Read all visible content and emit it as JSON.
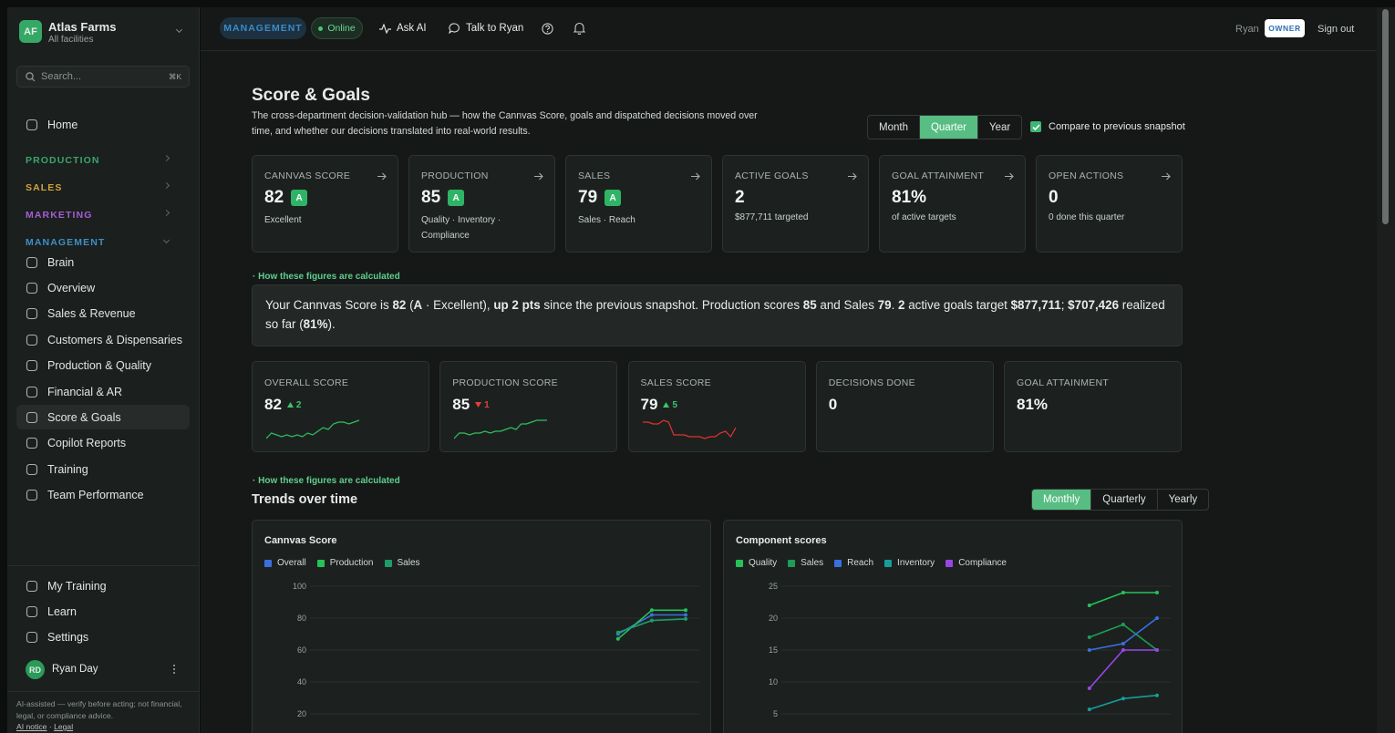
{
  "sidebar": {
    "org": {
      "initials": "AF",
      "name": "Atlas Farms",
      "subtitle": "All facilities"
    },
    "search": {
      "placeholder": "Search...",
      "shortcut": "⌘K"
    },
    "home": "Home",
    "sections": [
      {
        "label": "PRODUCTION",
        "color": "#3aa56c"
      },
      {
        "label": "SALES",
        "color": "#d2a23c"
      },
      {
        "label": "MARKETING",
        "color": "#a45fd6"
      },
      {
        "label": "MANAGEMENT",
        "color": "#3d8fc6",
        "expanded": true,
        "items": [
          {
            "label": "Brain"
          },
          {
            "label": "Overview"
          },
          {
            "label": "Sales & Revenue"
          },
          {
            "label": "Customers & Dispensaries"
          },
          {
            "label": "Production & Quality"
          },
          {
            "label": "Financial & AR"
          },
          {
            "label": "Score & Goals",
            "active": true
          },
          {
            "label": "Copilot Reports"
          },
          {
            "label": "Training"
          },
          {
            "label": "Team Performance"
          }
        ]
      }
    ],
    "footer_items": [
      "My Training",
      "Learn",
      "Settings"
    ],
    "user": {
      "initials": "RD",
      "name": "Ryan Day"
    },
    "disclaimer": "AI-assisted — verify before acting; not financial, legal, or compliance advice.",
    "links": [
      "AI notice",
      "Legal"
    ]
  },
  "topbar": {
    "context": "MANAGEMENT",
    "status": "Online",
    "actions": [
      "Ask AI",
      "Talk to Ryan"
    ],
    "user": "Ryan",
    "role": "OWNER",
    "sign_out": "Sign out"
  },
  "header": {
    "title": "Score & Goals",
    "description": "The cross-department decision-validation hub — how the Cannvas Score, goals and dispatched decisions moved over time, and whether our decisions translated into real-world results.",
    "periods": [
      {
        "label": "Month"
      },
      {
        "label": "Quarter",
        "selected": true
      },
      {
        "label": "Year"
      }
    ],
    "compare": {
      "label": "Compare to previous snapshot",
      "checked": true
    }
  },
  "kpis": [
    {
      "label": "CANNVAS SCORE",
      "value": 82,
      "grade": "A",
      "sub": "Excellent"
    },
    {
      "label": "PRODUCTION",
      "value": 85,
      "grade": "A",
      "sub": "Quality · Inventory · Compliance"
    },
    {
      "label": "SALES",
      "value": 79,
      "grade": "A",
      "sub": "Sales · Reach"
    },
    {
      "label": "ACTIVE GOALS",
      "value": 2,
      "sub": "$877,711 targeted"
    },
    {
      "label": "GOAL ATTAINMENT",
      "value": "81%",
      "sub": "of active targets"
    },
    {
      "label": "OPEN ACTIONS",
      "value": 0,
      "sub": "0 done this quarter"
    }
  ],
  "summary": {
    "calc_link": "How these figures are calculated",
    "segments": [
      {
        "text": "Your Cannvas Score is "
      },
      {
        "text": "82",
        "bold": true
      },
      {
        "text": " ("
      },
      {
        "text": "A",
        "bold": true
      },
      {
        "text": " · Excellent), "
      },
      {
        "text": "up 2 pts",
        "bold": true
      },
      {
        "text": " since the previous snapshot. Production scores "
      },
      {
        "text": "85",
        "bold": true
      },
      {
        "text": " and Sales "
      },
      {
        "text": "79",
        "bold": true
      },
      {
        "text": ". "
      },
      {
        "text": "2",
        "bold": true
      },
      {
        "text": " active goals target "
      },
      {
        "text": "$877,711",
        "bold": true
      },
      {
        "text": "; "
      },
      {
        "text": "$707,426",
        "bold": true
      },
      {
        "text": " realized so far ("
      },
      {
        "text": "81%",
        "bold": true
      },
      {
        "text": ")."
      }
    ]
  },
  "scores": [
    {
      "label": "OVERALL SCORE",
      "value": 82,
      "delta": 2,
      "direction": "up",
      "spark": {
        "color": "#2fbf5f",
        "values": [
          62,
          65,
          64,
          63,
          64,
          63,
          64,
          63,
          65,
          64,
          66,
          68,
          67,
          70,
          71,
          71,
          70,
          71,
          72
        ]
      }
    },
    {
      "label": "PRODUCTION SCORE",
      "value": 85,
      "delta": 1,
      "direction": "down",
      "spark": {
        "color": "#2fbf5f",
        "values": [
          60,
          63,
          63,
          62,
          63,
          63,
          64,
          63,
          64,
          64,
          65,
          66,
          65,
          68,
          68,
          69,
          70,
          70,
          70
        ]
      }
    },
    {
      "label": "SALES SCORE",
      "value": 79,
      "delta": 5,
      "direction": "up",
      "spark": {
        "color": "#e0322f",
        "values": [
          72,
          72,
          71,
          71,
          73,
          72,
          65,
          65,
          65,
          64,
          64,
          64,
          63,
          64,
          64,
          66,
          67,
          64,
          69
        ]
      }
    },
    {
      "label": "DECISIONS DONE",
      "value": 0
    },
    {
      "label": "GOAL ATTAINMENT",
      "value": "81%"
    }
  ],
  "trends": {
    "calc_link": "How these figures are calculated",
    "title": "Trends over time",
    "granularity": [
      {
        "label": "Monthly",
        "selected": true
      },
      {
        "label": "Quarterly"
      },
      {
        "label": "Yearly"
      }
    ],
    "charts": [
      {
        "type": "line",
        "title": "Cannvas Score",
        "ylim": [
          0,
          100
        ],
        "yticks": [
          20,
          40,
          60,
          80,
          100
        ],
        "grid": true,
        "categories": [
          null,
          null,
          null,
          null,
          null,
          null,
          null,
          null,
          null,
          null,
          null,
          null
        ],
        "series": [
          {
            "name": "Overall",
            "color": "#3b6fe0",
            "values": [
              null,
              null,
              null,
              null,
              null,
              null,
              null,
              null,
              null,
              70,
              82,
              82
            ]
          },
          {
            "name": "Production",
            "color": "#25c25a",
            "values": [
              null,
              null,
              null,
              null,
              null,
              null,
              null,
              null,
              null,
              67,
              85,
              85
            ]
          },
          {
            "name": "Sales",
            "color": "#1f9d68",
            "values": [
              null,
              null,
              null,
              null,
              null,
              null,
              null,
              null,
              null,
              71,
              78.5,
              79.5
            ]
          }
        ]
      },
      {
        "type": "line",
        "title": "Component scores",
        "ylim": [
          0,
          25
        ],
        "yticks": [
          5,
          10,
          15,
          20,
          25
        ],
        "grid": true,
        "categories": [
          null,
          null,
          null,
          null,
          null,
          null,
          null,
          null,
          null,
          null,
          null,
          null
        ],
        "series": [
          {
            "name": "Quality",
            "color": "#25c25a",
            "values": [
              null,
              null,
              null,
              null,
              null,
              null,
              null,
              null,
              null,
              22,
              24,
              24
            ]
          },
          {
            "name": "Sales",
            "color": "#1f9d55",
            "values": [
              null,
              null,
              null,
              null,
              null,
              null,
              null,
              null,
              null,
              17,
              19,
              15
            ]
          },
          {
            "name": "Reach",
            "color": "#3b6fe0",
            "values": [
              null,
              null,
              null,
              null,
              null,
              null,
              null,
              null,
              null,
              15,
              16,
              20
            ]
          },
          {
            "name": "Inventory",
            "color": "#159e9a",
            "values": [
              null,
              null,
              null,
              null,
              null,
              null,
              null,
              null,
              null,
              5.7,
              7.4,
              7.9
            ]
          },
          {
            "name": "Compliance",
            "color": "#9b45e8",
            "values": [
              null,
              null,
              null,
              null,
              null,
              null,
              null,
              null,
              null,
              9,
              15,
              15
            ]
          }
        ]
      }
    ]
  }
}
